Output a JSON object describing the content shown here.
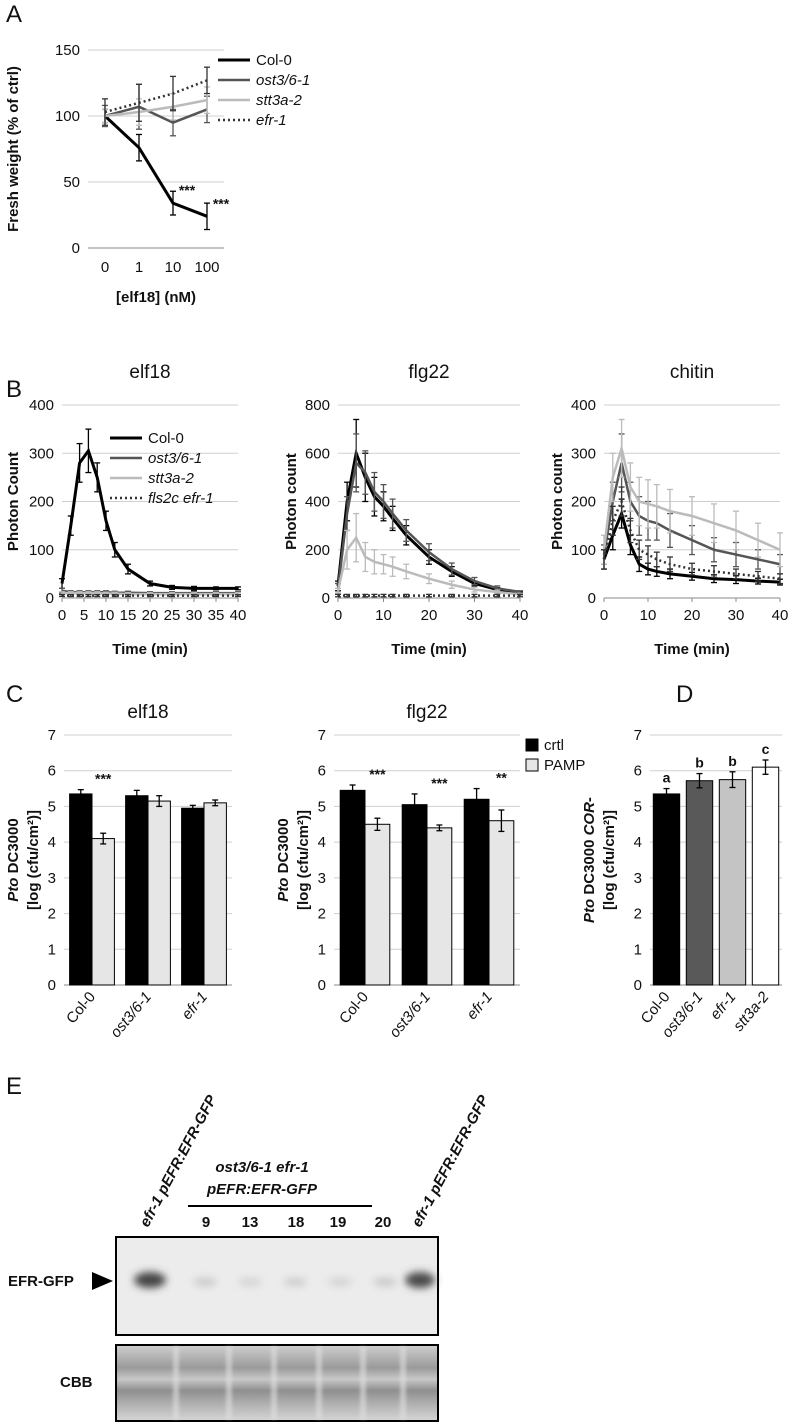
{
  "panel_labels": [
    "A",
    "B",
    "C",
    "D",
    "E"
  ],
  "chart_data": [
    {
      "type": "line",
      "categories": [
        "0",
        "1",
        "10",
        "100"
      ],
      "ylabel": "Fresh weight (% of ctrl)",
      "xlabel": "[elf18] (nM)",
      "ylim": [
        0,
        150
      ],
      "yticks": [
        0,
        50,
        100,
        150
      ],
      "grid": true,
      "legend": "right",
      "series": [
        {
          "name": "Col-0",
          "color": "#000000",
          "values": [
            100,
            76,
            34,
            24
          ],
          "errors": [
            5,
            10,
            9,
            10
          ]
        },
        {
          "name": "ost3/6-1",
          "italic": true,
          "color": "#555555",
          "values": [
            100,
            107,
            95,
            105
          ],
          "errors": [
            8,
            17,
            10,
            10
          ]
        },
        {
          "name": "stt3a-2",
          "italic": true,
          "color": "#bbbbbb",
          "values": [
            100,
            103,
            107,
            112
          ],
          "errors": [
            5,
            10,
            10,
            10
          ]
        },
        {
          "name": "efr-1",
          "italic": true,
          "color": "#333333",
          "dash": "dotted",
          "values": [
            103,
            110,
            117,
            127
          ],
          "errors": [
            10,
            14,
            13,
            10
          ]
        }
      ],
      "annotations": [
        {
          "text": "***",
          "category": "10"
        },
        {
          "text": "***",
          "category": "100"
        }
      ]
    },
    {
      "type": "line",
      "title": "elf18",
      "ylabel": "Photon Count",
      "xlabel": "Time (min)",
      "x": [
        0,
        2,
        4,
        6,
        8,
        10,
        12,
        15,
        20,
        25,
        30,
        35,
        40
      ],
      "xlim": [
        0,
        40
      ],
      "xticks": [
        0,
        5,
        10,
        15,
        20,
        25,
        30,
        35,
        40
      ],
      "ylim": [
        0,
        400
      ],
      "yticks": [
        0,
        100,
        200,
        300,
        400
      ],
      "grid": true,
      "legend": "upper right",
      "series": [
        {
          "name": "Col-0",
          "color": "#000000",
          "values": [
            30,
            150,
            280,
            305,
            250,
            160,
            100,
            60,
            30,
            22,
            20,
            20,
            20
          ],
          "errors": [
            10,
            20,
            40,
            45,
            30,
            20,
            15,
            10,
            5,
            4,
            4,
            3,
            3
          ]
        },
        {
          "name": "ost3/6-1",
          "italic": true,
          "color": "#555555",
          "values": [
            15,
            12,
            12,
            12,
            12,
            12,
            11,
            11,
            10,
            10,
            10,
            10,
            10
          ],
          "errors": [
            5,
            3,
            3,
            3,
            3,
            3,
            3,
            3,
            3,
            3,
            3,
            3,
            3
          ]
        },
        {
          "name": "stt3a-2",
          "italic": true,
          "color": "#bbbbbb",
          "values": [
            10,
            10,
            10,
            10,
            10,
            9,
            9,
            8,
            8,
            8,
            8,
            8,
            8
          ],
          "errors": [
            3,
            3,
            3,
            3,
            3,
            3,
            3,
            3,
            3,
            3,
            3,
            3,
            3
          ]
        },
        {
          "name": "fls2c efr-1",
          "italic": true,
          "color": "#333333",
          "dash": "dotted",
          "values": [
            5,
            5,
            5,
            5,
            5,
            5,
            5,
            5,
            5,
            5,
            5,
            5,
            5
          ],
          "errors": [
            2,
            2,
            2,
            2,
            2,
            2,
            2,
            2,
            2,
            2,
            2,
            2,
            2
          ]
        }
      ]
    },
    {
      "type": "line",
      "title": "flg22",
      "ylabel": "Photon count",
      "xlabel": "Time (min)",
      "x": [
        0,
        2,
        4,
        6,
        8,
        10,
        12,
        15,
        20,
        25,
        30,
        35,
        40
      ],
      "xlim": [
        0,
        40
      ],
      "xticks": [
        0,
        10,
        20,
        30,
        40
      ],
      "ylim": [
        0,
        800
      ],
      "yticks": [
        0,
        200,
        400,
        600,
        800
      ],
      "grid": true,
      "series": [
        {
          "color": "#000000",
          "values": [
            50,
            400,
            600,
            500,
            420,
            380,
            330,
            260,
            170,
            110,
            60,
            35,
            20
          ],
          "errors": [
            20,
            80,
            140,
            100,
            80,
            60,
            50,
            40,
            30,
            20,
            10,
            8,
            5
          ]
        },
        {
          "color": "#555555",
          "values": [
            40,
            350,
            560,
            520,
            440,
            400,
            350,
            280,
            190,
            120,
            70,
            40,
            25
          ],
          "errors": [
            20,
            70,
            120,
            90,
            80,
            70,
            60,
            45,
            35,
            25,
            15,
            10,
            5
          ]
        },
        {
          "color": "#bbbbbb",
          "values": [
            30,
            200,
            250,
            170,
            150,
            140,
            130,
            110,
            80,
            55,
            35,
            25,
            15
          ],
          "errors": [
            10,
            80,
            100,
            60,
            50,
            40,
            40,
            30,
            20,
            15,
            10,
            8,
            5
          ]
        },
        {
          "color": "#333333",
          "dash": "dotted",
          "values": [
            10,
            10,
            10,
            10,
            10,
            10,
            10,
            10,
            10,
            10,
            10,
            10,
            10
          ],
          "errors": [
            5,
            5,
            5,
            5,
            5,
            5,
            5,
            5,
            5,
            5,
            5,
            5,
            5
          ]
        }
      ]
    },
    {
      "type": "line",
      "title": "chitin",
      "ylabel": "Photon count",
      "xlabel": "Time (min)",
      "x": [
        0,
        2,
        4,
        6,
        8,
        10,
        12,
        15,
        20,
        25,
        30,
        35,
        40
      ],
      "xlim": [
        0,
        40
      ],
      "xticks": [
        0,
        10,
        20,
        30,
        40
      ],
      "ylim": [
        0,
        400
      ],
      "yticks": [
        0,
        100,
        200,
        300,
        400
      ],
      "grid": true,
      "series": [
        {
          "color": "#000000",
          "values": [
            80,
            130,
            175,
            110,
            70,
            60,
            55,
            50,
            45,
            40,
            38,
            35,
            33
          ],
          "errors": [
            20,
            30,
            30,
            20,
            15,
            12,
            10,
            10,
            8,
            8,
            8,
            6,
            6
          ]
        },
        {
          "color": "#555555",
          "values": [
            90,
            200,
            280,
            200,
            170,
            160,
            155,
            140,
            120,
            100,
            90,
            80,
            70
          ],
          "errors": [
            20,
            40,
            60,
            40,
            40,
            40,
            35,
            35,
            30,
            25,
            25,
            20,
            20
          ]
        },
        {
          "color": "#bbbbbb",
          "values": [
            100,
            250,
            310,
            230,
            200,
            195,
            190,
            180,
            170,
            155,
            140,
            120,
            100
          ],
          "errors": [
            30,
            50,
            60,
            50,
            50,
            50,
            45,
            45,
            40,
            40,
            40,
            35,
            35
          ]
        },
        {
          "color": "#333333",
          "dash": "dotted",
          "values": [
            80,
            160,
            200,
            140,
            100,
            90,
            80,
            70,
            60,
            55,
            50,
            45,
            40
          ],
          "errors": [
            20,
            30,
            30,
            25,
            20,
            18,
            15,
            15,
            12,
            12,
            10,
            10,
            10
          ]
        }
      ]
    },
    {
      "type": "bar",
      "title": "elf18",
      "categories": [
        "Col-0",
        "ost3/6-1",
        "efr-1"
      ],
      "category_italic": [
        false,
        true,
        true
      ],
      "ylabel": [
        [
          {
            "text": "Pto",
            "italic": true
          },
          {
            "text": " DC3000"
          }
        ],
        [
          {
            "text": "[log (cfu/cm²)]"
          }
        ]
      ],
      "ylim": [
        0,
        7
      ],
      "yticks": [
        0,
        1,
        2,
        3,
        4,
        5,
        6,
        7
      ],
      "grid": true,
      "series": [
        {
          "color": "#000000",
          "values": [
            5.35,
            5.3,
            4.95
          ],
          "errors": [
            0.12,
            0.15,
            0.08
          ]
        },
        {
          "color": "#e6e6e6",
          "values": [
            4.1,
            5.15,
            5.1
          ],
          "errors": [
            0.15,
            0.15,
            0.08
          ]
        }
      ],
      "annotations": [
        {
          "text": "***",
          "category": "Col-0"
        }
      ]
    },
    {
      "type": "bar",
      "title": "flg22",
      "categories": [
        "Col-0",
        "ost3/6-1",
        "efr-1"
      ],
      "category_italic": [
        false,
        true,
        true
      ],
      "ylabel": [
        [
          {
            "text": "Pto",
            "italic": true
          },
          {
            "text": " DC3000"
          }
        ],
        [
          {
            "text": "[log (cfu/cm²)]"
          }
        ]
      ],
      "ylim": [
        0,
        7
      ],
      "yticks": [
        0,
        1,
        2,
        3,
        4,
        5,
        6,
        7
      ],
      "grid": true,
      "legend": "right",
      "series": [
        {
          "name": "crtl",
          "color": "#000000",
          "values": [
            5.45,
            5.05,
            5.2
          ],
          "errors": [
            0.15,
            0.3,
            0.3
          ]
        },
        {
          "name": "PAMP",
          "color": "#e6e6e6",
          "values": [
            4.5,
            4.4,
            4.6
          ],
          "errors": [
            0.17,
            0.08,
            0.3
          ]
        }
      ],
      "annotations": [
        {
          "text": "***",
          "category": "Col-0"
        },
        {
          "text": "***",
          "category": "ost3/6-1"
        },
        {
          "text": "**",
          "category": "efr-1"
        }
      ]
    },
    {
      "type": "bar",
      "categories": [
        "Col-0",
        "ost3/6-1",
        "efr-1",
        "stt3a-2"
      ],
      "category_italic": [
        false,
        true,
        true,
        true
      ],
      "ylabel": [
        [
          {
            "text": "Pto",
            "italic": true
          },
          {
            "text": " DC3000 "
          },
          {
            "text": "COR",
            "italic": true
          },
          {
            "text": "-"
          }
        ],
        [
          {
            "text": "[log (cfu/cm²)]"
          }
        ]
      ],
      "ylim": [
        0,
        7
      ],
      "yticks": [
        0,
        1,
        2,
        3,
        4,
        5,
        6,
        7
      ],
      "grid": true,
      "values": [
        5.35,
        5.72,
        5.75,
        6.1
      ],
      "errors": [
        0.15,
        0.2,
        0.22,
        0.2
      ],
      "colors": [
        "#000000",
        "#595959",
        "#c4c4c4",
        "#ffffff"
      ],
      "annotations": [
        {
          "text": "a",
          "category": "Col-0"
        },
        {
          "text": "b",
          "category": "ost3/6-1"
        },
        {
          "text": "b",
          "category": "efr-1"
        },
        {
          "text": "c",
          "category": "stt3a-2"
        }
      ]
    }
  ],
  "blot": {
    "lane_labels": [
      "efr-1 pEFR:EFR-GFP",
      "9",
      "13",
      "18",
      "19",
      "20",
      "efr-1 pEFR:EFR-GFP"
    ],
    "group_label": [
      "ost3/6-1 efr-1",
      "pEFR:EFR-GFP"
    ],
    "row_labels": [
      "EFR-GFP",
      "CBB"
    ]
  }
}
